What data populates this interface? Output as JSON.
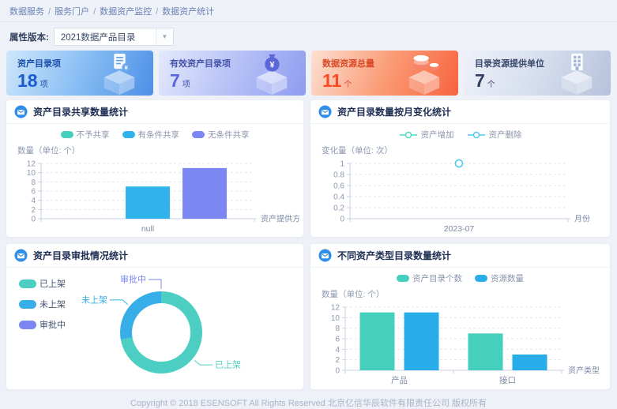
{
  "breadcrumb": {
    "separator": "/",
    "items": [
      "数据服务",
      "服务门户",
      "数据资产监控",
      "数据资产统计"
    ]
  },
  "filter": {
    "label": "属性版本:",
    "value": "2021数据产品目录"
  },
  "icons": {
    "chevron_down": "▾"
  },
  "cards": [
    {
      "label": "资产目录项",
      "value": "18",
      "unit": "项",
      "accent": "#1b5bd0",
      "icon": "document-cube-icon"
    },
    {
      "label": "有效资产目录项",
      "value": "7",
      "unit": "项",
      "accent": "#5a64e2",
      "icon": "moneybag-cube-icon"
    },
    {
      "label": "数据资源总量",
      "value": "11",
      "unit": "个",
      "accent": "#f64c26",
      "icon": "coins-cube-icon"
    },
    {
      "label": "目录资源提供单位",
      "value": "7",
      "unit": "个",
      "accent": "#2f3d60",
      "icon": "building-cube-icon"
    }
  ],
  "panels": [
    {
      "title": "资产目录共享数量统计",
      "y_unit": "数量（单位: 个）"
    },
    {
      "title": "资产目录数量按月变化统计",
      "y_unit": "变化量（单位: 次）"
    },
    {
      "title": "资产目录审批情况统计",
      "y_unit": ""
    },
    {
      "title": "不同资产类型目录数量统计",
      "y_unit": "数量（单位: 个）"
    }
  ],
  "chart_data": [
    {
      "type": "bar",
      "title": "资产目录共享数量统计",
      "categories": [
        "null"
      ],
      "series": [
        {
          "name": "不予共享",
          "color": "#45d0bd",
          "values": [
            0
          ]
        },
        {
          "name": "有条件共享",
          "color": "#2fb3ea",
          "values": [
            7
          ]
        },
        {
          "name": "无条件共享",
          "color": "#7b87f2",
          "values": [
            11
          ]
        }
      ],
      "xlabel": "资产提供方",
      "ylabel": "数量（单位: 个）",
      "ylim": [
        0,
        12
      ],
      "ystep": 2,
      "grid": "dashed",
      "legend_position": "top"
    },
    {
      "type": "line",
      "title": "资产目录数量按月变化统计",
      "categories": [
        "2023-07"
      ],
      "series": [
        {
          "name": "资产增加",
          "color": "#4cd6c6",
          "values": [
            1
          ]
        },
        {
          "name": "资产删除",
          "color": "#54c6f2",
          "values": [
            1
          ]
        }
      ],
      "xlabel": "月份",
      "ylabel": "变化量（单位: 次）",
      "ylim": [
        0,
        1
      ],
      "ystep": 0.2,
      "grid": "dashed",
      "legend_position": "top",
      "marker": "hollow-circle"
    },
    {
      "type": "pie",
      "title": "资产目录审批情况统计",
      "donut": true,
      "slices": [
        {
          "name": "已上架",
          "value": 13,
          "color": "#4ccfc2"
        },
        {
          "name": "未上架",
          "value": 5,
          "color": "#38aee8"
        },
        {
          "name": "审批中",
          "value": 0,
          "color": "#7b86f0"
        }
      ],
      "legend_position": "left"
    },
    {
      "type": "bar",
      "title": "不同资产类型目录数量统计",
      "categories": [
        "产品",
        "接口"
      ],
      "series": [
        {
          "name": "资产目录个数",
          "color": "#45d0bd",
          "values": [
            11,
            7
          ]
        },
        {
          "name": "资源数量",
          "color": "#29ade8",
          "values": [
            11,
            3
          ]
        }
      ],
      "xlabel": "资产类型",
      "ylabel": "数量（单位: 个）",
      "ylim": [
        0,
        12
      ],
      "ystep": 2,
      "grid": "dashed",
      "legend_position": "top"
    }
  ],
  "footer": {
    "copyright": "Copyright © 2018 ESENSOFT All Rights Reserved 北京亿信华辰软件有限责任公司 版权所有"
  }
}
